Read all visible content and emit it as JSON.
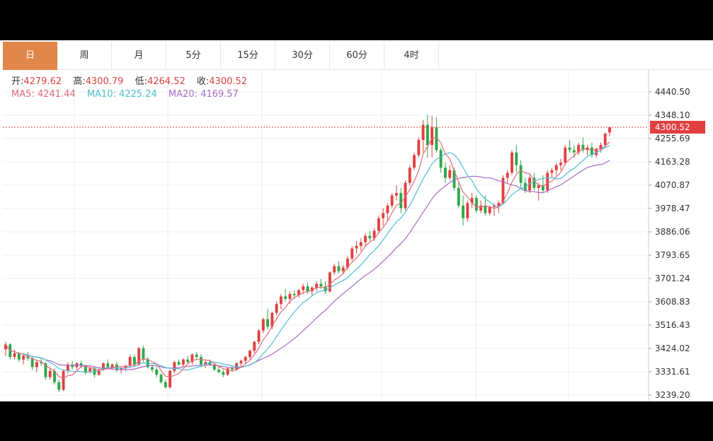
{
  "tabs": [
    {
      "label": "日",
      "active": true
    },
    {
      "label": "周",
      "active": false
    },
    {
      "label": "月",
      "active": false
    },
    {
      "label": "5分",
      "active": false
    },
    {
      "label": "15分",
      "active": false
    },
    {
      "label": "30分",
      "active": false
    },
    {
      "label": "60分",
      "active": false
    },
    {
      "label": "4时",
      "active": false
    }
  ],
  "ohlc": {
    "open_label": "开:",
    "open": "4279.62",
    "high_label": "高:",
    "high": "4300.79",
    "low_label": "低:",
    "low": "4264.52",
    "close_label": "收:",
    "close": "4300.52"
  },
  "ma": {
    "ma5_label": "MA5:",
    "ma5": "4241.44",
    "ma10_label": "MA10:",
    "ma10": "4225.24",
    "ma20_label": "MA20:",
    "ma20": "4169.57"
  },
  "colors": {
    "up": "#e24040",
    "down": "#2ea84a",
    "ma5": "#e26a7c",
    "ma10": "#4bbfd1",
    "ma20": "#a66bc4",
    "active_tab": "#e1874a"
  },
  "chart_data": {
    "type": "candlestick",
    "y_ticks": [
      "4440.50",
      "4348.10",
      "4255.69",
      "4163.28",
      "4070.87",
      "3978.47",
      "3886.06",
      "3793.65",
      "3701.24",
      "3608.83",
      "3516.43",
      "3424.02",
      "3331.61",
      "3239.20"
    ],
    "ylim": [
      3239.2,
      4440.5
    ],
    "last_price_label": "4300.52",
    "grid": true,
    "ohlc": [
      [
        3420,
        3450,
        3395,
        3440
      ],
      [
        3440,
        3445,
        3380,
        3390
      ],
      [
        3390,
        3420,
        3380,
        3405
      ],
      [
        3405,
        3410,
        3370,
        3380
      ],
      [
        3380,
        3400,
        3360,
        3395
      ],
      [
        3395,
        3410,
        3375,
        3385
      ],
      [
        3385,
        3390,
        3340,
        3350
      ],
      [
        3350,
        3380,
        3330,
        3370
      ],
      [
        3370,
        3385,
        3355,
        3365
      ],
      [
        3365,
        3370,
        3300,
        3310
      ],
      [
        3310,
        3345,
        3300,
        3335
      ],
      [
        3335,
        3345,
        3280,
        3290
      ],
      [
        3290,
        3300,
        3250,
        3260
      ],
      [
        3260,
        3340,
        3255,
        3335
      ],
      [
        3335,
        3370,
        3325,
        3360
      ],
      [
        3360,
        3375,
        3340,
        3350
      ],
      [
        3350,
        3370,
        3340,
        3365
      ],
      [
        3365,
        3375,
        3345,
        3355
      ],
      [
        3355,
        3360,
        3320,
        3330
      ],
      [
        3330,
        3350,
        3325,
        3345
      ],
      [
        3345,
        3355,
        3310,
        3320
      ],
      [
        3320,
        3345,
        3315,
        3340
      ],
      [
        3340,
        3370,
        3335,
        3365
      ],
      [
        3365,
        3380,
        3345,
        3350
      ],
      [
        3350,
        3365,
        3340,
        3360
      ],
      [
        3360,
        3370,
        3330,
        3340
      ],
      [
        3340,
        3350,
        3325,
        3345
      ],
      [
        3345,
        3360,
        3335,
        3355
      ],
      [
        3355,
        3400,
        3345,
        3390
      ],
      [
        3390,
        3400,
        3350,
        3360
      ],
      [
        3360,
        3430,
        3355,
        3425
      ],
      [
        3425,
        3435,
        3370,
        3380
      ],
      [
        3380,
        3390,
        3345,
        3350
      ],
      [
        3350,
        3360,
        3330,
        3340
      ],
      [
        3340,
        3350,
        3310,
        3320
      ],
      [
        3320,
        3325,
        3285,
        3290
      ],
      [
        3290,
        3300,
        3265,
        3270
      ],
      [
        3270,
        3340,
        3265,
        3335
      ],
      [
        3335,
        3375,
        3325,
        3370
      ],
      [
        3370,
        3380,
        3355,
        3360
      ],
      [
        3360,
        3385,
        3350,
        3380
      ],
      [
        3380,
        3395,
        3365,
        3370
      ],
      [
        3370,
        3405,
        3360,
        3400
      ],
      [
        3400,
        3410,
        3380,
        3390
      ],
      [
        3390,
        3400,
        3355,
        3360
      ],
      [
        3360,
        3375,
        3345,
        3370
      ],
      [
        3370,
        3380,
        3355,
        3360
      ],
      [
        3360,
        3365,
        3335,
        3340
      ],
      [
        3340,
        3355,
        3325,
        3330
      ],
      [
        3330,
        3340,
        3310,
        3320
      ],
      [
        3320,
        3350,
        3315,
        3345
      ],
      [
        3345,
        3355,
        3330,
        3340
      ],
      [
        3340,
        3370,
        3335,
        3365
      ],
      [
        3365,
        3380,
        3350,
        3375
      ],
      [
        3375,
        3395,
        3365,
        3390
      ],
      [
        3390,
        3420,
        3380,
        3415
      ],
      [
        3415,
        3455,
        3405,
        3450
      ],
      [
        3450,
        3500,
        3440,
        3495
      ],
      [
        3495,
        3545,
        3485,
        3540
      ],
      [
        3540,
        3580,
        3500,
        3510
      ],
      [
        3510,
        3570,
        3500,
        3565
      ],
      [
        3565,
        3610,
        3555,
        3600
      ],
      [
        3600,
        3640,
        3580,
        3630
      ],
      [
        3630,
        3660,
        3610,
        3620
      ],
      [
        3620,
        3650,
        3600,
        3640
      ],
      [
        3640,
        3655,
        3620,
        3635
      ],
      [
        3635,
        3660,
        3625,
        3655
      ],
      [
        3655,
        3680,
        3640,
        3670
      ],
      [
        3670,
        3685,
        3640,
        3650
      ],
      [
        3650,
        3670,
        3630,
        3665
      ],
      [
        3665,
        3690,
        3650,
        3680
      ],
      [
        3680,
        3700,
        3660,
        3670
      ],
      [
        3670,
        3690,
        3640,
        3650
      ],
      [
        3650,
        3730,
        3645,
        3725
      ],
      [
        3725,
        3760,
        3715,
        3750
      ],
      [
        3750,
        3770,
        3720,
        3730
      ],
      [
        3730,
        3755,
        3720,
        3745
      ],
      [
        3745,
        3790,
        3735,
        3780
      ],
      [
        3780,
        3830,
        3770,
        3820
      ],
      [
        3820,
        3850,
        3800,
        3830
      ],
      [
        3830,
        3860,
        3810,
        3845
      ],
      [
        3845,
        3880,
        3830,
        3870
      ],
      [
        3870,
        3890,
        3850,
        3860
      ],
      [
        3860,
        3900,
        3850,
        3890
      ],
      [
        3890,
        3950,
        3880,
        3940
      ],
      [
        3940,
        3980,
        3910,
        3960
      ],
      [
        3960,
        4000,
        3930,
        3990
      ],
      [
        3990,
        4040,
        3980,
        4030
      ],
      [
        4030,
        4070,
        4010,
        4040
      ],
      [
        4040,
        4060,
        3960,
        3980
      ],
      [
        3980,
        4090,
        3970,
        4080
      ],
      [
        4080,
        4150,
        4070,
        4140
      ],
      [
        4140,
        4200,
        4130,
        4190
      ],
      [
        4190,
        4260,
        4180,
        4250
      ],
      [
        4250,
        4330,
        4200,
        4310
      ],
      [
        4310,
        4350,
        4180,
        4230
      ],
      [
        4230,
        4345,
        4180,
        4300
      ],
      [
        4300,
        4340,
        4200,
        4210
      ],
      [
        4210,
        4220,
        4120,
        4140
      ],
      [
        4140,
        4160,
        4080,
        4100
      ],
      [
        4100,
        4150,
        4090,
        4130
      ],
      [
        4130,
        4140,
        4050,
        4060
      ],
      [
        4060,
        4080,
        3980,
        3990
      ],
      [
        3990,
        4030,
        3910,
        3940
      ],
      [
        3940,
        4010,
        3925,
        4000
      ],
      [
        4000,
        4040,
        3980,
        4020
      ],
      [
        4020,
        4030,
        3960,
        3970
      ],
      [
        3970,
        4010,
        3960,
        3990
      ],
      [
        3990,
        4030,
        3950,
        3960
      ],
      [
        3960,
        3990,
        3950,
        3985
      ],
      [
        3985,
        4000,
        3950,
        3990
      ],
      [
        3990,
        4010,
        3960,
        4000
      ],
      [
        4000,
        4110,
        3995,
        4100
      ],
      [
        4100,
        4130,
        4080,
        4120
      ],
      [
        4120,
        4210,
        4110,
        4200
      ],
      [
        4200,
        4230,
        4120,
        4150
      ],
      [
        4150,
        4170,
        4060,
        4080
      ],
      [
        4080,
        4100,
        4040,
        4050
      ],
      [
        4050,
        4110,
        4040,
        4100
      ],
      [
        4100,
        4120,
        4050,
        4060
      ],
      [
        4060,
        4080,
        4010,
        4070
      ],
      [
        4070,
        4110,
        4040,
        4050
      ],
      [
        4050,
        4130,
        4040,
        4120
      ],
      [
        4120,
        4140,
        4100,
        4130
      ],
      [
        4130,
        4160,
        4110,
        4150
      ],
      [
        4150,
        4175,
        4130,
        4160
      ],
      [
        4160,
        4230,
        4150,
        4220
      ],
      [
        4220,
        4250,
        4200,
        4210
      ],
      [
        4210,
        4230,
        4180,
        4200
      ],
      [
        4200,
        4240,
        4190,
        4230
      ],
      [
        4230,
        4260,
        4200,
        4210
      ],
      [
        4210,
        4230,
        4190,
        4220
      ],
      [
        4220,
        4240,
        4180,
        4190
      ],
      [
        4190,
        4220,
        4180,
        4215
      ],
      [
        4215,
        4240,
        4200,
        4230
      ],
      [
        4230,
        4280,
        4220,
        4275
      ],
      [
        4279.62,
        4300.79,
        4264.52,
        4300.52
      ]
    ]
  }
}
